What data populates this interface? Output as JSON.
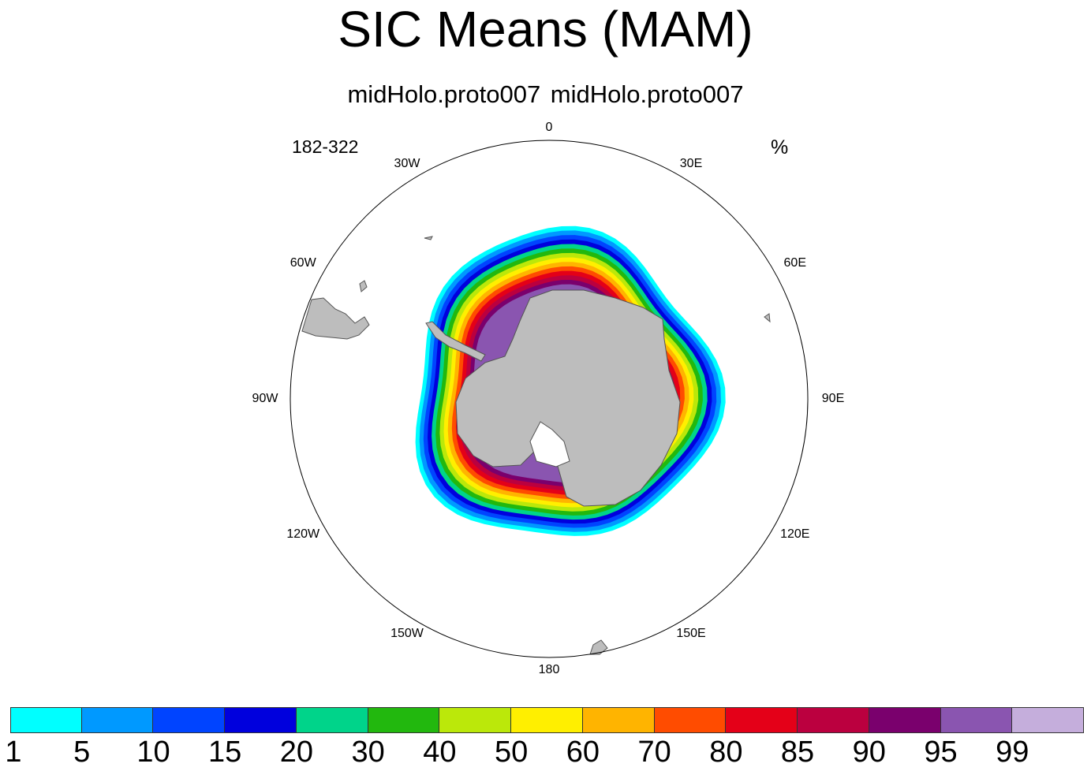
{
  "title": "SIC Means (MAM)",
  "subtitle": "midHolo.proto007  midHolo.proto007",
  "left_string": "182-322",
  "units": "%",
  "longitude_labels": [
    "0",
    "30E",
    "60E",
    "90E",
    "120E",
    "150E",
    "180",
    "150W",
    "120W",
    "90W",
    "60W",
    "30W"
  ],
  "colorbar": {
    "colors": [
      "#00ffff",
      "#0099ff",
      "#0044ff",
      "#0000dd",
      "#00d48a",
      "#22b80e",
      "#bbe80a",
      "#ffef00",
      "#ffb400",
      "#ff4c00",
      "#e40018",
      "#bb003f",
      "#7a006d",
      "#8a55b0",
      "#c5aedc"
    ],
    "labels": [
      "1",
      "5",
      "10",
      "15",
      "20",
      "30",
      "40",
      "50",
      "60",
      "70",
      "80",
      "85",
      "90",
      "95",
      "99"
    ]
  }
}
